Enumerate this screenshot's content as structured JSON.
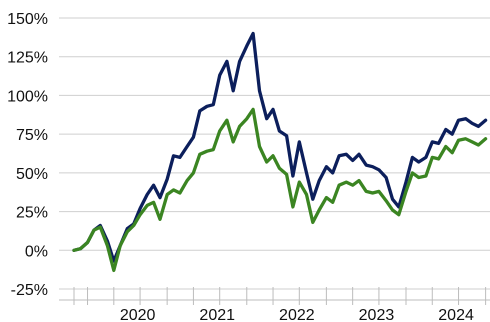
{
  "chart_data": {
    "type": "line",
    "ylim": [
      -25,
      150
    ],
    "xlim": [
      2019.0,
      2024.2
    ],
    "grid": "horizontal",
    "y_ticks": [
      {
        "value": 150,
        "label": "150%"
      },
      {
        "value": 125,
        "label": "125%"
      },
      {
        "value": 100,
        "label": "100%"
      },
      {
        "value": 75,
        "label": "75%"
      },
      {
        "value": 50,
        "label": "50%"
      },
      {
        "value": 25,
        "label": "25%"
      },
      {
        "value": 0,
        "label": "0%"
      },
      {
        "value": -25,
        "label": "-25%"
      }
    ],
    "x_ticks": [
      {
        "value": 2020,
        "label": "2020"
      },
      {
        "value": 2021,
        "label": "2021"
      },
      {
        "value": 2022,
        "label": "2022"
      },
      {
        "value": 2023,
        "label": "2023"
      },
      {
        "value": 2024,
        "label": "2024"
      }
    ],
    "x_minor_ticks": [
      2019.0,
      2019.17,
      2019.5,
      2019.83,
      2020.17,
      2020.5,
      2020.83,
      2021.17,
      2021.5,
      2021.83,
      2022.17,
      2022.5,
      2022.83,
      2023.17,
      2023.5,
      2023.83,
      2024.17
    ],
    "series": [
      {
        "color": "#0c1f5c",
        "x": [
          2019.0,
          2019.08,
          2019.17,
          2019.25,
          2019.33,
          2019.42,
          2019.5,
          2019.58,
          2019.67,
          2019.75,
          2019.83,
          2019.92,
          2020.0,
          2020.08,
          2020.17,
          2020.25,
          2020.33,
          2020.42,
          2020.5,
          2020.58,
          2020.67,
          2020.75,
          2020.83,
          2020.92,
          2021.0,
          2021.08,
          2021.17,
          2021.25,
          2021.33,
          2021.42,
          2021.5,
          2021.58,
          2021.67,
          2021.75,
          2021.83,
          2021.92,
          2022.0,
          2022.08,
          2022.17,
          2022.25,
          2022.33,
          2022.42,
          2022.5,
          2022.58,
          2022.67,
          2022.75,
          2022.83,
          2022.92,
          2023.0,
          2023.08,
          2023.17,
          2023.25,
          2023.33,
          2023.42,
          2023.5,
          2023.58,
          2023.67,
          2023.75,
          2023.83,
          2023.92,
          2024.0,
          2024.08,
          2024.17
        ],
        "y": [
          0,
          1,
          5,
          13,
          16,
          6,
          -7,
          3,
          14,
          17,
          27,
          36,
          42,
          34,
          46,
          61,
          60,
          67,
          73,
          90,
          93,
          94,
          113,
          122,
          103,
          122,
          132,
          140,
          103,
          85,
          91,
          77,
          74,
          48,
          70,
          50,
          33,
          45,
          54,
          50,
          61,
          62,
          58,
          62,
          55,
          54,
          52,
          47,
          33,
          28,
          44,
          60,
          57,
          60,
          70,
          69,
          78,
          75,
          84,
          85,
          82,
          80,
          84
        ]
      },
      {
        "color": "#3b8522",
        "x": [
          2019.0,
          2019.08,
          2019.17,
          2019.25,
          2019.33,
          2019.42,
          2019.5,
          2019.58,
          2019.67,
          2019.75,
          2019.83,
          2019.92,
          2020.0,
          2020.08,
          2020.17,
          2020.25,
          2020.33,
          2020.42,
          2020.5,
          2020.58,
          2020.67,
          2020.75,
          2020.83,
          2020.92,
          2021.0,
          2021.08,
          2021.17,
          2021.25,
          2021.33,
          2021.42,
          2021.5,
          2021.58,
          2021.67,
          2021.75,
          2021.83,
          2021.92,
          2022.0,
          2022.08,
          2022.17,
          2022.25,
          2022.33,
          2022.42,
          2022.5,
          2022.58,
          2022.67,
          2022.75,
          2022.83,
          2022.92,
          2023.0,
          2023.08,
          2023.17,
          2023.25,
          2023.33,
          2023.42,
          2023.5,
          2023.58,
          2023.67,
          2023.75,
          2023.83,
          2023.92,
          2024.0,
          2024.08,
          2024.17
        ],
        "y": [
          0,
          1,
          5,
          13,
          15,
          3,
          -13,
          3,
          12,
          16,
          23,
          29,
          31,
          20,
          36,
          39,
          37,
          45,
          50,
          62,
          64,
          65,
          77,
          84,
          70,
          80,
          85,
          91,
          67,
          57,
          61,
          53,
          49,
          28,
          44,
          36,
          18,
          26,
          34,
          31,
          42,
          44,
          42,
          45,
          38,
          37,
          38,
          32,
          26,
          23,
          38,
          50,
          47,
          48,
          60,
          59,
          67,
          63,
          71,
          72,
          70,
          68,
          72
        ]
      }
    ]
  }
}
